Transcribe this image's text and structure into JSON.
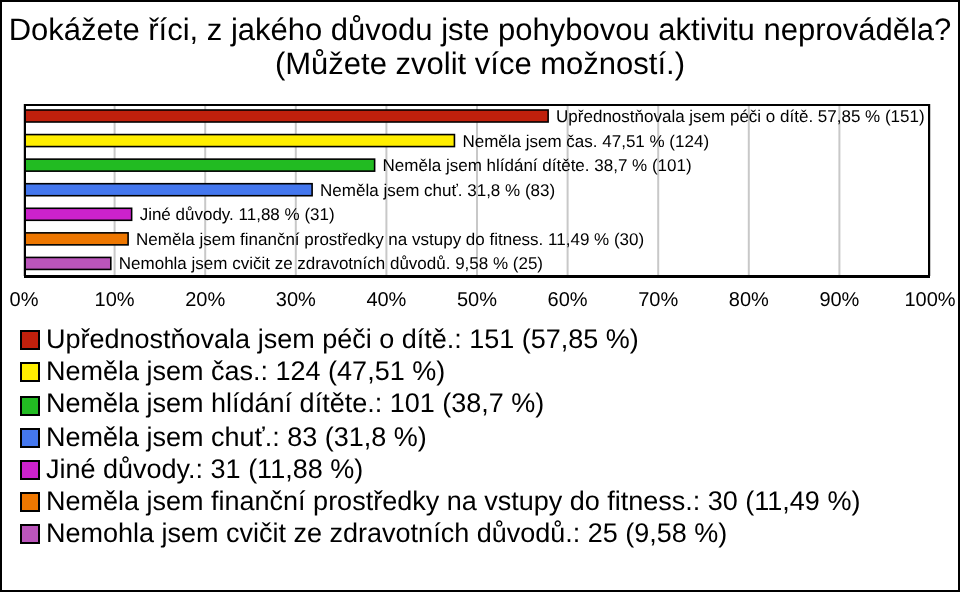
{
  "chart_data": {
    "type": "bar",
    "orientation": "horizontal",
    "stacked": true,
    "title": "Dokážete říci, z jakého důvodu jste pohybovou aktivitu neprováděla?",
    "subtitle": "(Můžete zvolit více možností.)",
    "categories": [
      null,
      null,
      null,
      null,
      null,
      null,
      null
    ],
    "series": [
      {
        "name": "Upřednostňovala jsem péči o dítě.: 151 (57,85 %)",
        "color": "#c0200c",
        "values": [
          57.85,
          null,
          null,
          null,
          null,
          null,
          null
        ],
        "value_labels": [
          "Upřednostňovala jsem péči o dítě. 57,85 % (151)",
          null,
          null,
          null,
          null,
          null,
          null
        ]
      },
      {
        "name": "Neměla jsem čas.: 124 (47,51 %)",
        "color": "#ffee00",
        "values": [
          null,
          47.51,
          null,
          null,
          null,
          null,
          null
        ],
        "value_labels": [
          null,
          "Neměla jsem čas. 47,51 % (124)",
          null,
          null,
          null,
          null,
          null
        ]
      },
      {
        "name": "Neměla jsem hlídání dítěte.: 101 (38,7 %)",
        "color": "#22bb22",
        "values": [
          null,
          null,
          38.7,
          null,
          null,
          null,
          null
        ],
        "value_labels": [
          null,
          null,
          "Neměla jsem hlídání dítěte. 38,7 % (101)",
          null,
          null,
          null,
          null
        ]
      },
      {
        "name": "Neměla jsem chuť.: 83 (31,8 %)",
        "color": "#4477ee",
        "values": [
          null,
          null,
          null,
          31.8,
          null,
          null,
          null
        ],
        "value_labels": [
          null,
          null,
          null,
          "Neměla jsem chuť. 31,8 % (83)",
          null,
          null,
          null
        ]
      },
      {
        "name": "Jiné důvody.: 31 (11,88 %)",
        "color": "#cc22cc",
        "values": [
          null,
          null,
          null,
          null,
          11.88,
          null,
          null
        ],
        "value_labels": [
          null,
          null,
          null,
          null,
          "Jiné důvody. 11,88 % (31)",
          null,
          null
        ]
      },
      {
        "name": "Neměla jsem finanční prostředky na vstupy do fitness.: 30 (11,49 %)",
        "color": "#ee7700",
        "values": [
          null,
          null,
          null,
          null,
          null,
          11.49,
          null
        ],
        "value_labels": [
          null,
          null,
          null,
          null,
          null,
          "Neměla jsem finanční prostředky na vstupy do fitness. 11,49 % (30)",
          null
        ]
      },
      {
        "name": "Nemohla jsem cvičit ze zdravotních důvodů.: 25 (9,58 %)",
        "color": "#bb55bb",
        "values": [
          null,
          null,
          null,
          null,
          null,
          null,
          9.58
        ],
        "value_labels": [
          null,
          null,
          null,
          null,
          null,
          null,
          "Nemohla jsem cvičit ze zdravotních důvodů. 9,58 % (25)"
        ]
      }
    ],
    "xlim": [
      0,
      100
    ],
    "xticks": [
      {
        "value": 0,
        "label": "0%"
      },
      {
        "value": 10,
        "label": "10%"
      },
      {
        "value": 20,
        "label": "20%"
      },
      {
        "value": 30,
        "label": "30%"
      },
      {
        "value": 40,
        "label": "40%"
      },
      {
        "value": 50,
        "label": "50%"
      },
      {
        "value": 60,
        "label": "60%"
      },
      {
        "value": 70,
        "label": "70%"
      },
      {
        "value": 80,
        "label": "80%"
      },
      {
        "value": 90,
        "label": "90%"
      },
      {
        "value": 100,
        "label": "100%"
      }
    ],
    "grid": "x",
    "legend": "bottom"
  }
}
